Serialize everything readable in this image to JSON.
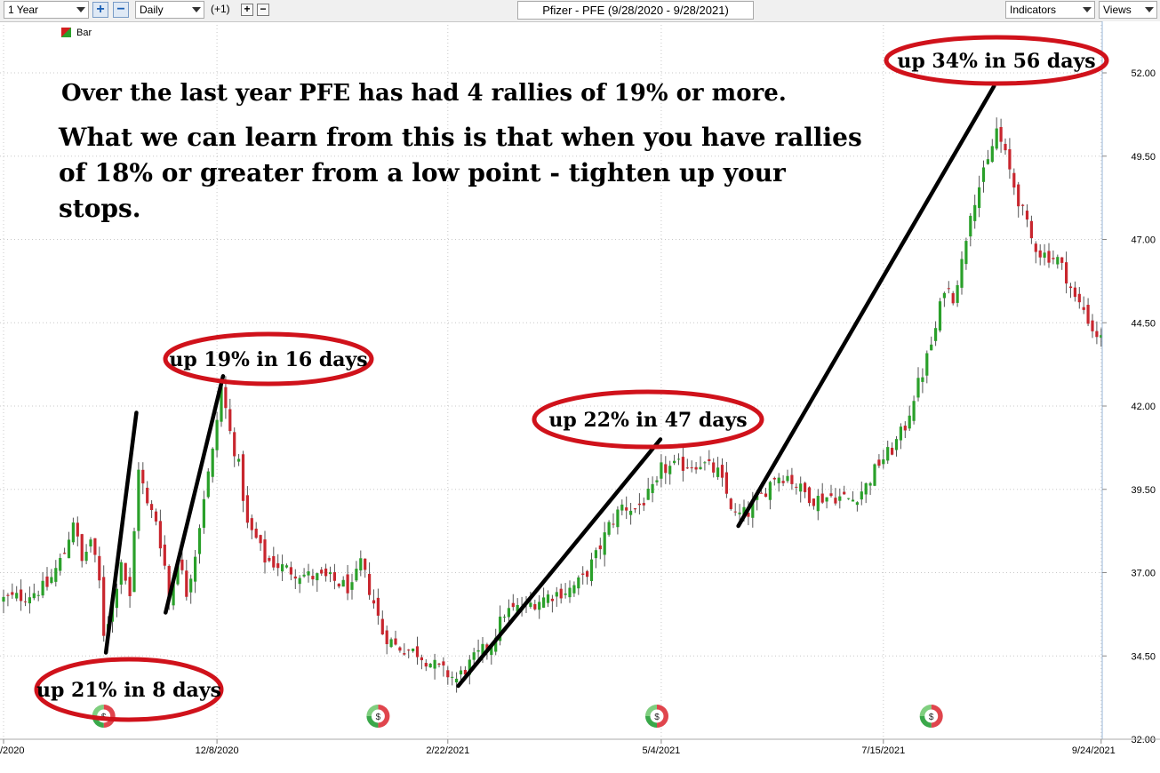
{
  "toolbar": {
    "period": "1 Year",
    "interval": "Daily",
    "offset": "(+1)",
    "plus": "+",
    "minus": "−",
    "indicators": "Indicators",
    "views": "Views"
  },
  "chart_title": "Pfizer - PFE (9/28/2020 - 9/28/2021)",
  "legend": {
    "label": "Bar"
  },
  "chart_data": {
    "type": "candlestick",
    "title": "Pfizer - PFE (9/28/2020 - 9/28/2021)",
    "y_ticks": [
      "52.00",
      "49.50",
      "47.00",
      "44.50",
      "42.00",
      "39.50",
      "37.00",
      "34.50",
      "32.00"
    ],
    "y_range": [
      32.0,
      52.0
    ],
    "x_ticks": [
      {
        "label": "/2020",
        "index": 0
      },
      {
        "label": "12/8/2020",
        "index": 49
      },
      {
        "label": "2/22/2021",
        "index": 102
      },
      {
        "label": "5/4/2021",
        "index": 151
      },
      {
        "label": "7/15/2021",
        "index": 202
      },
      {
        "label": "9/24/2021",
        "index": 252
      }
    ],
    "close_anchors": [
      [
        0,
        36.2
      ],
      [
        5,
        36.3
      ],
      [
        10,
        36.6
      ],
      [
        14,
        37.6
      ],
      [
        16,
        38.6
      ],
      [
        18,
        37.3
      ],
      [
        20,
        38.0
      ],
      [
        22,
        36.7
      ],
      [
        23,
        35.2
      ],
      [
        25,
        36.0
      ],
      [
        27,
        37.4
      ],
      [
        29,
        36.2
      ],
      [
        31,
        40.2
      ],
      [
        33,
        39.0
      ],
      [
        35,
        38.6
      ],
      [
        37,
        37.2
      ],
      [
        38,
        36.2
      ],
      [
        40,
        37.5
      ],
      [
        42,
        36.4
      ],
      [
        44,
        37.6
      ],
      [
        46,
        39.3
      ],
      [
        48,
        40.6
      ],
      [
        50,
        42.6
      ],
      [
        52,
        41.2
      ],
      [
        54,
        40.2
      ],
      [
        56,
        38.4
      ],
      [
        58,
        38.0
      ],
      [
        60,
        37.4
      ],
      [
        65,
        37.1
      ],
      [
        70,
        36.9
      ],
      [
        75,
        36.8
      ],
      [
        80,
        36.5
      ],
      [
        82,
        37.3
      ],
      [
        85,
        36.1
      ],
      [
        87,
        35.2
      ],
      [
        90,
        34.8
      ],
      [
        95,
        34.6
      ],
      [
        100,
        34.1
      ],
      [
        104,
        33.8
      ],
      [
        108,
        34.4
      ],
      [
        112,
        34.9
      ],
      [
        115,
        35.8
      ],
      [
        120,
        36.0
      ],
      [
        125,
        36.3
      ],
      [
        130,
        36.5
      ],
      [
        133,
        36.8
      ],
      [
        136,
        37.5
      ],
      [
        139,
        38.4
      ],
      [
        142,
        39.0
      ],
      [
        145,
        38.9
      ],
      [
        148,
        39.3
      ],
      [
        150,
        39.6
      ],
      [
        151,
        40.1
      ],
      [
        155,
        40.2
      ],
      [
        160,
        40.3
      ],
      [
        164,
        40.0
      ],
      [
        168,
        38.7
      ],
      [
        171,
        38.8
      ],
      [
        174,
        39.3
      ],
      [
        177,
        39.9
      ],
      [
        180,
        39.9
      ],
      [
        183,
        39.5
      ],
      [
        186,
        39.2
      ],
      [
        190,
        39.3
      ],
      [
        195,
        39.2
      ],
      [
        198,
        39.6
      ],
      [
        201,
        40.3
      ],
      [
        204,
        40.7
      ],
      [
        207,
        41.4
      ],
      [
        209,
        42.3
      ],
      [
        211,
        43.0
      ],
      [
        214,
        44.3
      ],
      [
        216,
        45.6
      ],
      [
        218,
        45.3
      ],
      [
        220,
        46.3
      ],
      [
        222,
        47.9
      ],
      [
        224,
        48.6
      ],
      [
        226,
        49.3
      ],
      [
        228,
        50.3
      ],
      [
        230,
        49.5
      ],
      [
        232,
        48.6
      ],
      [
        234,
        47.8
      ],
      [
        236,
        47.0
      ],
      [
        238,
        46.6
      ],
      [
        240,
        46.5
      ],
      [
        242,
        46.4
      ],
      [
        244,
        45.9
      ],
      [
        246,
        45.2
      ],
      [
        248,
        44.9
      ],
      [
        250,
        44.3
      ],
      [
        252,
        44.0
      ],
      [
        254,
        43.7
      ]
    ],
    "dividend_markers": [
      {
        "index": 23,
        "label": "$"
      },
      {
        "index": 86,
        "label": "$"
      },
      {
        "index": 150,
        "label": "$"
      },
      {
        "index": 213,
        "label": "$"
      }
    ],
    "annotations": {
      "headline": "Over the last year PFE has had 4 rallies of 19% or more.",
      "body_lines": [
        "What we can learn from this is that when you have rallies",
        "of 18% or greater from a low point - tighten up your",
        "stops."
      ],
      "callouts": [
        {
          "text": "up 21% in 8 days",
          "from": [
            23.5,
            34.6
          ],
          "to": [
            30.5,
            41.8
          ]
        },
        {
          "text": "up 19% in 16 days",
          "from": [
            37.2,
            35.8
          ],
          "to": [
            50.4,
            42.9
          ]
        },
        {
          "text": "up 22% in 47 days",
          "from": [
            104.4,
            33.6
          ],
          "to": [
            150.8,
            41.0
          ]
        },
        {
          "text": "up 34% in 56 days",
          "from": [
            168.7,
            38.4
          ],
          "to": [
            227.4,
            51.6
          ]
        }
      ]
    }
  }
}
